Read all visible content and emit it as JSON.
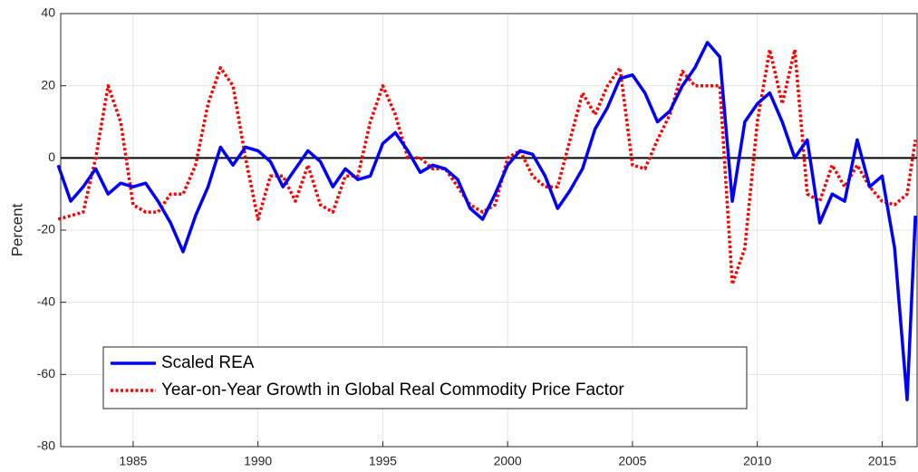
{
  "chart_data": {
    "type": "line",
    "y_label": "Percent",
    "x": [
      1982,
      1982.5,
      1983,
      1983.5,
      1984,
      1984.5,
      1985,
      1985.5,
      1986,
      1986.5,
      1987,
      1987.5,
      1988,
      1988.5,
      1989,
      1989.5,
      1990,
      1990.5,
      1991,
      1991.5,
      1992,
      1992.5,
      1993,
      1993.5,
      1994,
      1994.5,
      1995,
      1995.5,
      1996,
      1996.5,
      1997,
      1997.5,
      1998,
      1998.5,
      1999,
      1999.5,
      2000,
      2000.5,
      2001,
      2001.5,
      2002,
      2002.5,
      2003,
      2003.5,
      2004,
      2004.5,
      2005,
      2005.5,
      2006,
      2006.5,
      2007,
      2007.5,
      2008,
      2008.5,
      2009,
      2009.5,
      2010,
      2010.5,
      2011,
      2011.5,
      2012,
      2012.5,
      2013,
      2013.5,
      2014,
      2014.5,
      2015,
      2015.5,
      2016,
      2016.33
    ],
    "series": [
      {
        "name": "Scaled REA",
        "color": "#0000ff",
        "dash": false,
        "values": [
          -2,
          -12,
          -8,
          -3,
          -10,
          -7,
          -8,
          -7,
          -12,
          -18,
          -26,
          -16,
          -8,
          3,
          -2,
          3,
          2,
          -1,
          -8,
          -3,
          2,
          -1,
          -8,
          -3,
          -6,
          -5,
          4,
          7,
          2,
          -4,
          -2,
          -3,
          -6,
          -14,
          -17,
          -10,
          -2,
          2,
          1,
          -5,
          -14,
          -9,
          -3,
          8,
          14,
          22,
          23,
          18,
          10,
          13,
          20,
          25,
          32,
          28,
          -12,
          10,
          15,
          18,
          10,
          0,
          5,
          -18,
          -10,
          -12,
          5,
          -8,
          -5,
          -25,
          -67,
          -16
        ]
      },
      {
        "name": "Year-on-Year Growth in Global Real Commodity Price Factor",
        "color": "#ff0000",
        "dash": true,
        "values": [
          -17,
          -16,
          -15,
          0,
          20,
          10,
          -13,
          -15,
          -15,
          -10,
          -10,
          -2,
          15,
          25,
          20,
          0,
          -17,
          -5,
          -5,
          -12,
          -2,
          -13,
          -15,
          -5,
          -5,
          10,
          20,
          12,
          0,
          0,
          -3,
          -3,
          -8,
          -13,
          -15,
          -13,
          0,
          2,
          -5,
          -8,
          -8,
          5,
          18,
          12,
          20,
          25,
          -2,
          -3,
          5,
          12,
          24,
          20,
          20,
          20,
          -35,
          -25,
          10,
          30,
          15,
          30,
          -10,
          -12,
          -2,
          -8,
          -2,
          -8,
          -12,
          -13,
          -10,
          5
        ]
      }
    ],
    "xlim": [
      1982.1,
      2016.4
    ],
    "ylim": [
      -80,
      40
    ],
    "xticks": [
      1985,
      1990,
      1995,
      2000,
      2005,
      2010,
      2015
    ],
    "yticks": [
      -80,
      -60,
      -40,
      -20,
      0,
      20,
      40
    ],
    "grid": true,
    "legend": "lower left"
  }
}
